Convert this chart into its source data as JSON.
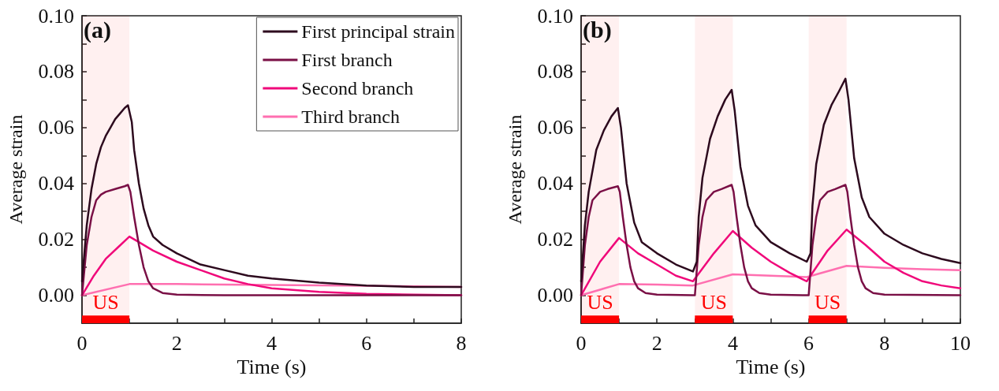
{
  "chart_data": [
    {
      "type": "line",
      "xlabel": "Time (s)",
      "ylabel": "Average strain",
      "annotations": [
        "(a)"
      ],
      "xlim": [
        0,
        8
      ],
      "ylim": [
        -0.01,
        0.1
      ],
      "xticks": [
        0,
        {
          "value": 1,
          "label": null
        },
        2,
        {
          "value": 3,
          "label": null
        },
        4,
        {
          "value": 5,
          "label": null
        },
        6,
        {
          "value": 7,
          "label": null
        },
        8
      ],
      "yticks": [
        {
          "value": 0,
          "label": "0.00"
        },
        {
          "value": 0.01,
          "label": null
        },
        {
          "value": 0.02,
          "label": "0.02"
        },
        {
          "value": 0.03,
          "label": null
        },
        {
          "value": 0.04,
          "label": "0.04"
        },
        {
          "value": 0.05,
          "label": null
        },
        {
          "value": 0.06,
          "label": "0.06"
        },
        {
          "value": 0.07,
          "label": null
        },
        {
          "value": 0.08,
          "label": "0.08"
        },
        {
          "value": 0.09,
          "label": null
        },
        {
          "value": 0.1,
          "label": "0.10"
        }
      ],
      "legend": "top right",
      "grid": false,
      "marker": "none",
      "line_style": "solid",
      "bands": [
        {
          "axis": "x",
          "from": 0,
          "to": 1,
          "label": "US",
          "color": "#ff0000"
        }
      ],
      "series": [
        {
          "name": "First principal strain",
          "color": "#2d0a1e",
          "x": [
            0,
            0.1,
            0.2,
            0.3,
            0.4,
            0.5,
            0.6,
            0.7,
            0.8,
            0.9,
            0.97,
            1.05,
            1.1,
            1.2,
            1.3,
            1.4,
            1.5,
            1.7,
            2,
            2.5,
            3,
            3.5,
            4,
            5,
            6,
            7,
            8
          ],
          "values": [
            0.005,
            0.025,
            0.038,
            0.047,
            0.053,
            0.057,
            0.06,
            0.063,
            0.065,
            0.067,
            0.068,
            0.062,
            0.052,
            0.04,
            0.031,
            0.025,
            0.021,
            0.018,
            0.015,
            0.011,
            0.009,
            0.007,
            0.006,
            0.0045,
            0.0035,
            0.003,
            0.003
          ]
        },
        {
          "name": "First branch",
          "color": "#7a1046",
          "x": [
            0,
            0.1,
            0.2,
            0.3,
            0.4,
            0.5,
            0.7,
            0.9,
            0.97,
            1.02,
            1.1,
            1.2,
            1.3,
            1.4,
            1.5,
            1.7,
            2,
            3,
            8
          ],
          "values": [
            0,
            0.018,
            0.028,
            0.034,
            0.036,
            0.037,
            0.038,
            0.039,
            0.0395,
            0.037,
            0.028,
            0.018,
            0.01,
            0.005,
            0.0025,
            0.0008,
            0.0002,
            0,
            0
          ]
        },
        {
          "name": "Second branch",
          "color": "#f0087a",
          "x": [
            0,
            0.25,
            0.5,
            0.75,
            1,
            1.2,
            1.5,
            2,
            2.5,
            3,
            3.5,
            4,
            5,
            6,
            7,
            8
          ],
          "values": [
            0,
            0.007,
            0.013,
            0.017,
            0.021,
            0.019,
            0.016,
            0.012,
            0.009,
            0.006,
            0.004,
            0.0025,
            0.0012,
            0.0005,
            0.0002,
            0
          ]
        },
        {
          "name": "Third branch",
          "color": "#ff6fb0",
          "x": [
            0,
            1,
            2,
            4,
            6,
            8
          ],
          "values": [
            0,
            0.004,
            0.004,
            0.0037,
            0.0034,
            0.003
          ]
        }
      ]
    },
    {
      "type": "line",
      "xlabel": "Time (s)",
      "ylabel": "Average strain",
      "annotations": [
        "(b)"
      ],
      "xlim": [
        0,
        10
      ],
      "ylim": [
        -0.01,
        0.1
      ],
      "xticks": [
        0,
        {
          "value": 1,
          "label": null
        },
        2,
        {
          "value": 3,
          "label": null
        },
        4,
        {
          "value": 5,
          "label": null
        },
        6,
        {
          "value": 7,
          "label": null
        },
        8,
        {
          "value": 9,
          "label": null
        },
        10
      ],
      "yticks": [
        {
          "value": 0,
          "label": "0.00"
        },
        {
          "value": 0.01,
          "label": null
        },
        {
          "value": 0.02,
          "label": "0.02"
        },
        {
          "value": 0.03,
          "label": null
        },
        {
          "value": 0.04,
          "label": "0.04"
        },
        {
          "value": 0.05,
          "label": null
        },
        {
          "value": 0.06,
          "label": "0.06"
        },
        {
          "value": 0.07,
          "label": null
        },
        {
          "value": 0.08,
          "label": "0.08"
        },
        {
          "value": 0.09,
          "label": null
        },
        {
          "value": 0.1,
          "label": "0.10"
        }
      ],
      "grid": false,
      "marker": "none",
      "line_style": "solid",
      "bands": [
        {
          "axis": "x",
          "from": 0,
          "to": 1,
          "label": "US",
          "color": "#ff0000"
        },
        {
          "axis": "x",
          "from": 3,
          "to": 4,
          "label": "US",
          "color": "#ff0000"
        },
        {
          "axis": "x",
          "from": 6,
          "to": 7,
          "label": "US",
          "color": "#ff0000"
        }
      ],
      "series": [
        {
          "color": "#2d0a1e",
          "x": [
            0,
            0.1,
            0.2,
            0.4,
            0.6,
            0.8,
            0.97,
            1.05,
            1.2,
            1.4,
            1.6,
            2,
            2.5,
            2.95,
            3.05,
            3.1,
            3.2,
            3.4,
            3.6,
            3.8,
            3.97,
            4.05,
            4.2,
            4.4,
            4.6,
            5,
            5.5,
            5.95,
            6.05,
            6.1,
            6.2,
            6.4,
            6.6,
            6.8,
            6.97,
            7.05,
            7.2,
            7.4,
            7.6,
            8,
            8.5,
            9,
            9.5,
            10
          ],
          "values": [
            0.005,
            0.025,
            0.037,
            0.052,
            0.059,
            0.064,
            0.067,
            0.06,
            0.04,
            0.026,
            0.019,
            0.015,
            0.011,
            0.0085,
            0.012,
            0.028,
            0.042,
            0.056,
            0.064,
            0.07,
            0.0735,
            0.066,
            0.046,
            0.032,
            0.025,
            0.019,
            0.015,
            0.012,
            0.015,
            0.032,
            0.047,
            0.061,
            0.068,
            0.073,
            0.0775,
            0.07,
            0.049,
            0.035,
            0.028,
            0.022,
            0.018,
            0.015,
            0.013,
            0.0115
          ]
        },
        {
          "color": "#7a1046",
          "x": [
            0,
            0.1,
            0.2,
            0.3,
            0.5,
            0.7,
            0.97,
            1.02,
            1.1,
            1.2,
            1.3,
            1.4,
            1.5,
            1.7,
            2,
            2.95,
            3,
            3.1,
            3.2,
            3.3,
            3.5,
            3.7,
            3.97,
            4.02,
            4.1,
            4.2,
            4.3,
            4.4,
            4.5,
            4.7,
            5,
            5.95,
            6,
            6.1,
            6.2,
            6.3,
            6.5,
            6.7,
            6.97,
            7.02,
            7.1,
            7.2,
            7.3,
            7.4,
            7.5,
            7.7,
            8,
            10
          ],
          "values": [
            0,
            0.018,
            0.028,
            0.034,
            0.037,
            0.038,
            0.039,
            0.037,
            0.028,
            0.018,
            0.01,
            0.005,
            0.0025,
            0.0008,
            0.0002,
            0,
            0,
            0.018,
            0.028,
            0.034,
            0.037,
            0.038,
            0.0395,
            0.037,
            0.028,
            0.018,
            0.01,
            0.005,
            0.0025,
            0.0008,
            0.0002,
            0,
            0,
            0.018,
            0.028,
            0.034,
            0.037,
            0.038,
            0.0395,
            0.037,
            0.028,
            0.018,
            0.01,
            0.005,
            0.0025,
            0.0008,
            0.0002,
            0
          ]
        },
        {
          "color": "#f0087a",
          "x": [
            0,
            0.5,
            1,
            1.5,
            2,
            2.5,
            2.95,
            3.5,
            4,
            4.5,
            5,
            5.5,
            5.95,
            6.5,
            7,
            7.5,
            8,
            8.5,
            9,
            9.5,
            10
          ],
          "values": [
            0,
            0.012,
            0.0205,
            0.015,
            0.011,
            0.007,
            0.005,
            0.015,
            0.023,
            0.017,
            0.012,
            0.008,
            0.005,
            0.016,
            0.0235,
            0.018,
            0.012,
            0.008,
            0.005,
            0.0035,
            0.0025
          ]
        },
        {
          "color": "#ff6fb0",
          "x": [
            0,
            1,
            2,
            2.95,
            4,
            5,
            5.95,
            7,
            8,
            9,
            10
          ],
          "values": [
            0,
            0.004,
            0.0038,
            0.0035,
            0.0075,
            0.007,
            0.0065,
            0.0105,
            0.0098,
            0.0093,
            0.009
          ]
        }
      ]
    }
  ]
}
